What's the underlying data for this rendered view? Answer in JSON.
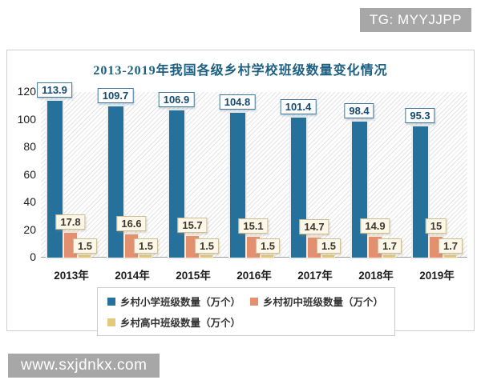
{
  "watermarks": {
    "top_right": "TG: MYYJJPP",
    "bottom_left": "www.sxjdnkx.com"
  },
  "chart_data": {
    "type": "bar",
    "title": "2013-2019年我国各级乡村学校班级数量变化情况",
    "title_color": "#1c5f80",
    "categories": [
      "2013年",
      "2014年",
      "2015年",
      "2016年",
      "2017年",
      "2018年",
      "2019年"
    ],
    "series": [
      {
        "name": "乡村小学班级数量（万个）",
        "color": "#26719b",
        "values": [
          113.9,
          109.7,
          106.9,
          104.8,
          101.4,
          98.4,
          95.3
        ]
      },
      {
        "name": "乡村初中班级数量（万个）",
        "color": "#e29070",
        "values": [
          17.8,
          16.6,
          15.7,
          15.1,
          14.7,
          14.9,
          15
        ]
      },
      {
        "name": "乡村高中班级数量（万个）",
        "color": "#e4c87c",
        "values": [
          1.5,
          1.5,
          1.5,
          1.5,
          1.5,
          1.7,
          1.7
        ]
      }
    ],
    "xlabel": "",
    "ylabel": "",
    "ylim": [
      0,
      120
    ],
    "yticks": [
      0,
      20,
      40,
      60,
      80,
      100,
      120
    ],
    "grid": false,
    "data_labels": true,
    "legend_position": "bottom"
  }
}
